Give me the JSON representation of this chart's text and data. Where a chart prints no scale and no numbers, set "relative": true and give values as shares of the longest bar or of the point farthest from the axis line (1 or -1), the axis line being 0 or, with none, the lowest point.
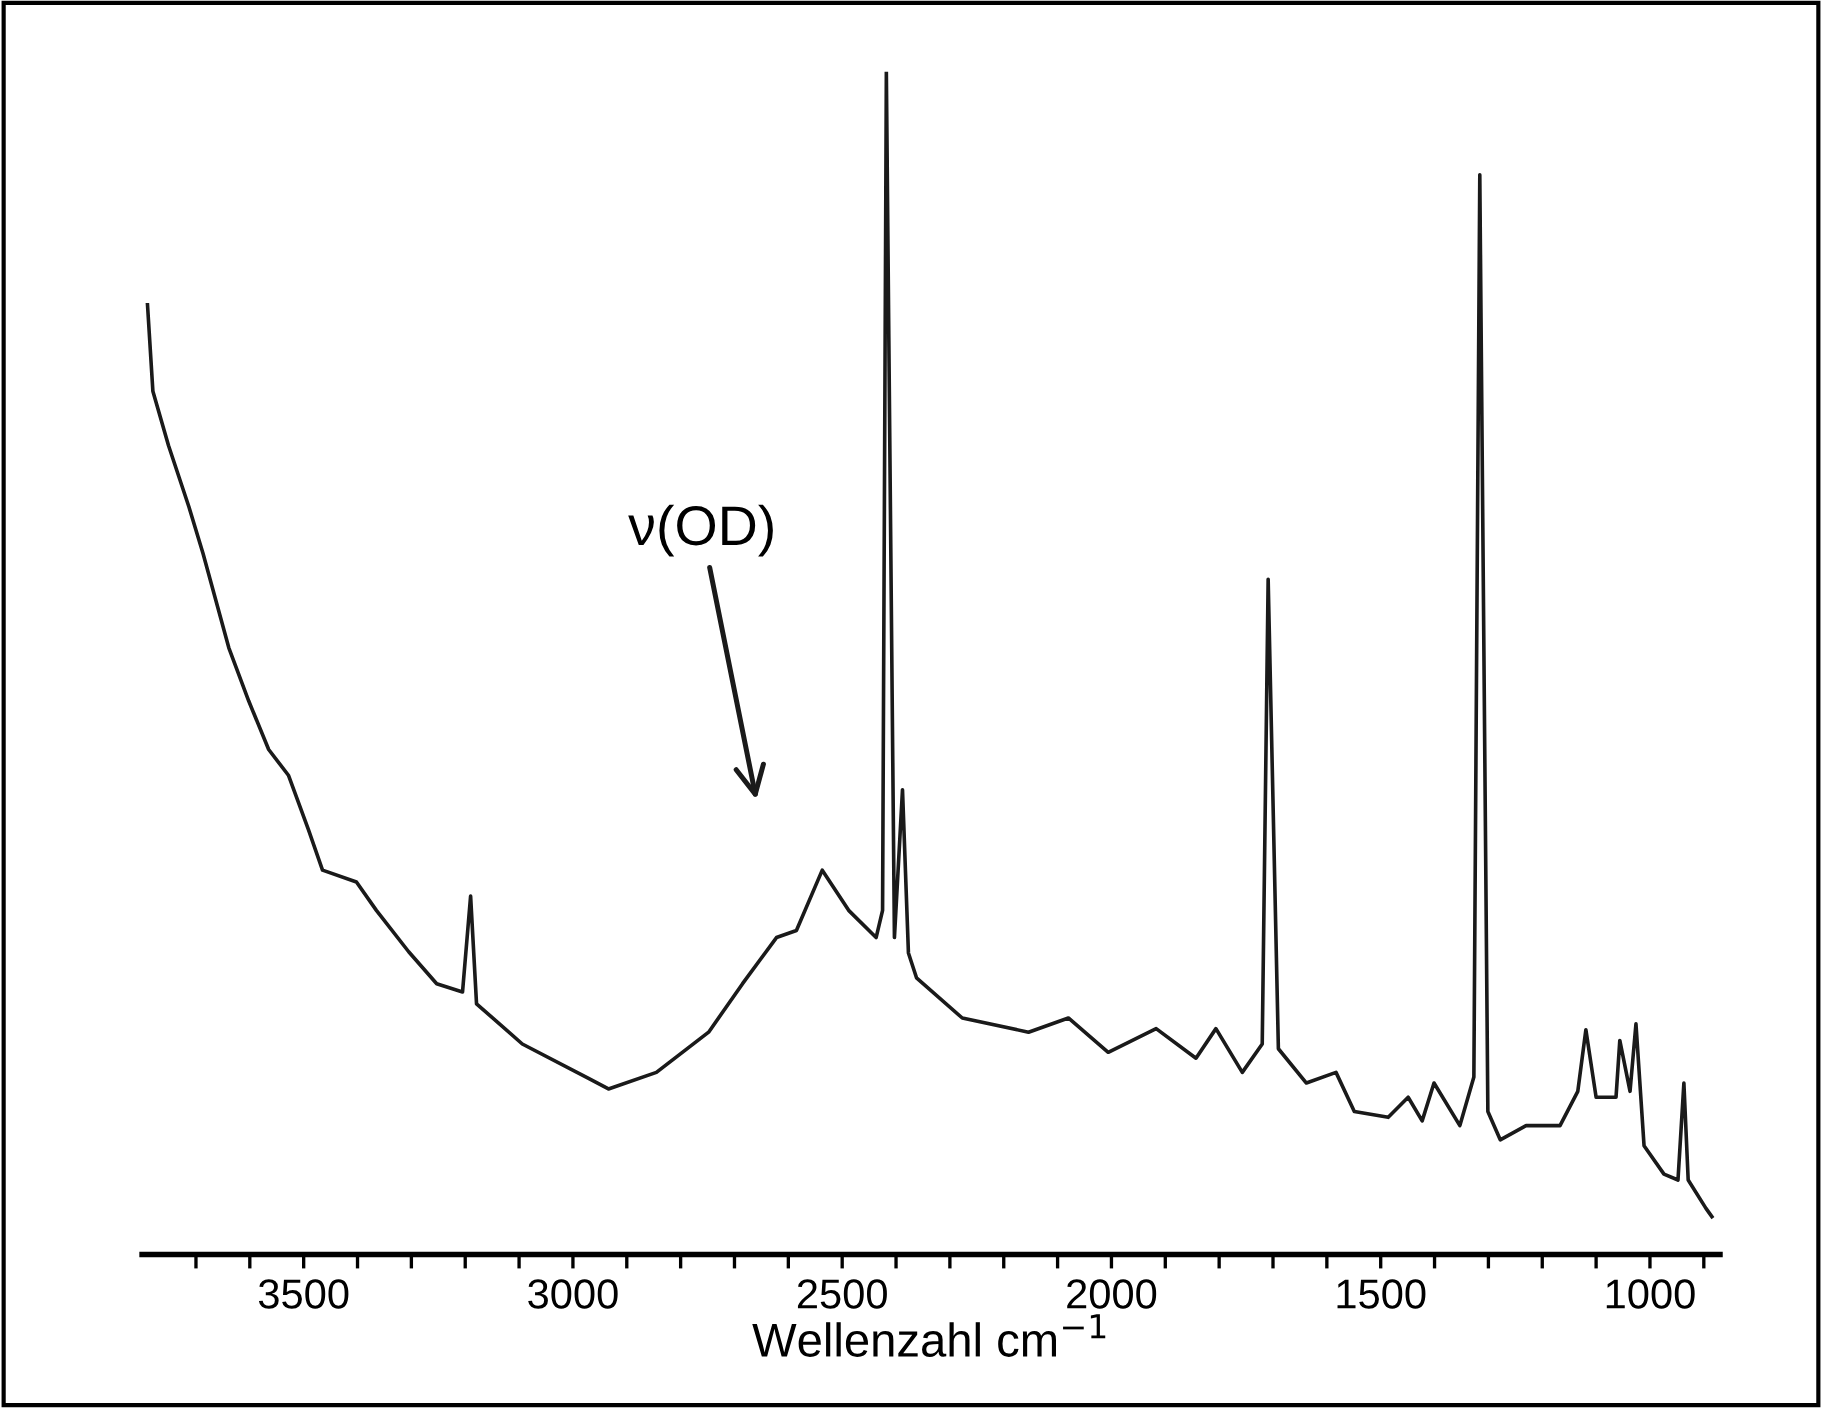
{
  "chart_data": {
    "type": "line",
    "relative": true,
    "xlabel": "Wellenzahl cm$^{−1}$",
    "xlim": [
      3800,
      870
    ],
    "xticks": [
      {
        "value": 3700,
        "label": null
      },
      {
        "value": 3600,
        "label": null
      },
      3500,
      {
        "value": 3400,
        "label": null
      },
      {
        "value": 3300,
        "label": null
      },
      {
        "value": 3200,
        "label": null
      },
      {
        "value": 3100,
        "label": null
      },
      3000,
      {
        "value": 2900,
        "label": null
      },
      {
        "value": 2800,
        "label": null
      },
      {
        "value": 2700,
        "label": null
      },
      {
        "value": 2600,
        "label": null
      },
      2500,
      {
        "value": 2400,
        "label": null
      },
      {
        "value": 2300,
        "label": null
      },
      {
        "value": 2200,
        "label": null
      },
      {
        "value": 2100,
        "label": null
      },
      2000,
      {
        "value": 1900,
        "label": null
      },
      {
        "value": 1800,
        "label": null
      },
      {
        "value": 1700,
        "label": null
      },
      {
        "value": 1600,
        "label": null
      },
      1500,
      {
        "value": 1400,
        "label": null
      },
      {
        "value": 1300,
        "label": null
      },
      {
        "value": 1200,
        "label": null
      },
      {
        "value": 1100,
        "label": null
      },
      1000,
      {
        "value": 900,
        "label": null
      }
    ],
    "tick_labels": "x",
    "grid": false,
    "legend": false,
    "marker": "none",
    "line_style": "solid",
    "annotations": [
      "ν(OD)"
    ],
    "series": [
      {
        "color": "#1a1a1a",
        "x": [
          3790,
          3780,
          3751,
          3713,
          3687,
          3639,
          3602,
          3565,
          3528,
          3491,
          3465,
          3402,
          3365,
          3305,
          3253,
          3205,
          3190,
          3179,
          3094,
          2971,
          2934,
          2845,
          2748,
          2685,
          2622,
          2585,
          2537,
          2488,
          2437,
          2425,
          2418,
          2403,
          2388,
          2377,
          2362,
          2277,
          2154,
          2080,
          2006,
          1917,
          1843,
          1806,
          1757,
          1720,
          1709,
          1690,
          1638,
          1583,
          1549,
          1486,
          1449,
          1423,
          1401,
          1353,
          1327,
          1316,
          1301,
          1278,
          1230,
          1167,
          1134,
          1119,
          1100,
          1063,
          1056,
          1037,
          1026,
          1011,
          974,
          948,
          937,
          929,
          896,
          885
        ],
        "values": [
          0.803,
          0.73,
          0.684,
          0.632,
          0.593,
          0.513,
          0.468,
          0.427,
          0.405,
          0.359,
          0.325,
          0.315,
          0.291,
          0.256,
          0.229,
          0.222,
          0.303,
          0.212,
          0.178,
          0.149,
          0.14,
          0.154,
          0.188,
          0.229,
          0.268,
          0.274,
          0.325,
          0.291,
          0.268,
          0.291,
          1.0,
          0.268,
          0.393,
          0.255,
          0.234,
          0.2,
          0.188,
          0.2,
          0.171,
          0.191,
          0.166,
          0.191,
          0.154,
          0.178,
          0.571,
          0.174,
          0.145,
          0.154,
          0.121,
          0.116,
          0.133,
          0.113,
          0.145,
          0.109,
          0.15,
          0.913,
          0.121,
          0.097,
          0.109,
          0.109,
          0.138,
          0.19,
          0.133,
          0.133,
          0.181,
          0.138,
          0.195,
          0.092,
          0.068,
          0.063,
          0.145,
          0.063,
          0.039,
          0.032
        ]
      }
    ]
  }
}
